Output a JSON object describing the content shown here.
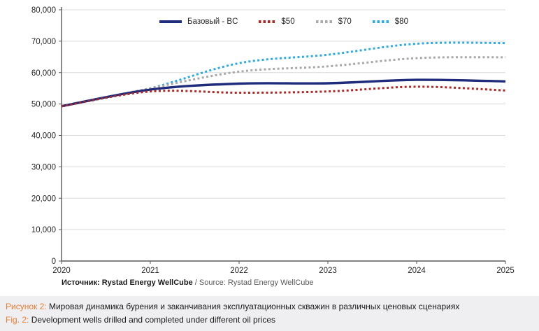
{
  "chart_data": {
    "type": "line",
    "x": [
      2020,
      2021,
      2022,
      2023,
      2024,
      2025
    ],
    "series": [
      {
        "name": "Базовый - BC",
        "color": "#1f2c7c",
        "style": "solid",
        "values": [
          49300,
          54600,
          56500,
          56600,
          57700,
          57200
        ]
      },
      {
        "name": "$50",
        "color": "#b02622",
        "style": "dotted",
        "values": [
          49300,
          54000,
          53600,
          54000,
          55500,
          54300
        ]
      },
      {
        "name": "$70",
        "color": "#a8a8a8",
        "style": "dotted",
        "values": [
          49300,
          55000,
          60300,
          62000,
          64600,
          64900
        ]
      },
      {
        "name": "$80",
        "color": "#2aabe4",
        "style": "dotted",
        "values": [
          49300,
          55000,
          63000,
          65700,
          69200,
          69400
        ]
      }
    ],
    "title": "",
    "xlabel": "",
    "ylabel": "",
    "ylim": [
      0,
      80000
    ],
    "ytick_step": 10000,
    "ytick_labels": [
      "0",
      "10,000",
      "20,000",
      "30,000",
      "40,000",
      "50,000",
      "60,000",
      "70,000",
      "80,000"
    ],
    "xtick_labels": [
      "2020",
      "2021",
      "2022",
      "2023",
      "2024",
      "2025"
    ],
    "grid": "horizontal",
    "legend_position": "top-center"
  },
  "source_line": {
    "primary": "Источник: Rystad Energy WellCube",
    "secondary": " / Source: Rystad Energy WellCube"
  },
  "captions": {
    "ru_label": "Рисунок 2:",
    "ru_text": " Мировая динамика бурения и заканчивания эксплуатационных скважин в различных ценовых сценариях",
    "en_label": "Fig. 2:",
    "en_text": " Development wells drilled and completed under different oil prices"
  },
  "colors": {
    "accent_orange": "#ed7d31",
    "caption_background": "#efeff1",
    "gridline": "#d9d9d9",
    "axis": "#595959",
    "tick_label": "#262626"
  }
}
